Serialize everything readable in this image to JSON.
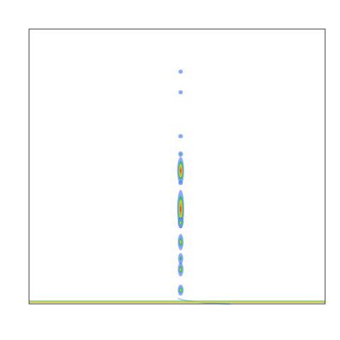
{
  "chart_data": {
    "type": "heatmap",
    "title": "",
    "xlabel": "",
    "ylabel": "",
    "axes_visible": false,
    "legend": "none",
    "colormap": [
      "#2b3dff",
      "#5fb4ff",
      "#3fb34a",
      "#d9d92a",
      "#e89a2a",
      "#d94a3a"
    ],
    "baseline_color": "#c9c43a",
    "background": "#ffffff",
    "frame_color": "#333333",
    "xlim": [
      0,
      1
    ],
    "ylim": [
      0,
      1
    ],
    "spike_x": 0.512,
    "blobs": [
      {
        "y": 0.845,
        "intensity": 0.15,
        "spread": 0.006
      },
      {
        "y": 0.77,
        "intensity": 0.12,
        "spread": 0.005
      },
      {
        "y": 0.61,
        "intensity": 0.25,
        "spread": 0.008
      },
      {
        "y": 0.545,
        "intensity": 0.3,
        "spread": 0.01
      },
      {
        "y": 0.485,
        "intensity": 0.95,
        "spread": 0.05
      },
      {
        "y": 0.44,
        "intensity": 0.2,
        "spread": 0.008
      },
      {
        "y": 0.345,
        "intensity": 1.0,
        "spread": 0.07
      },
      {
        "y": 0.295,
        "intensity": 0.55,
        "spread": 0.02
      },
      {
        "y": 0.225,
        "intensity": 0.55,
        "spread": 0.03
      },
      {
        "y": 0.165,
        "intensity": 0.4,
        "spread": 0.02
      },
      {
        "y": 0.125,
        "intensity": 0.55,
        "spread": 0.025
      },
      {
        "y": 0.05,
        "intensity": 0.6,
        "spread": 0.02
      }
    ],
    "baseline_y": 0.005
  }
}
